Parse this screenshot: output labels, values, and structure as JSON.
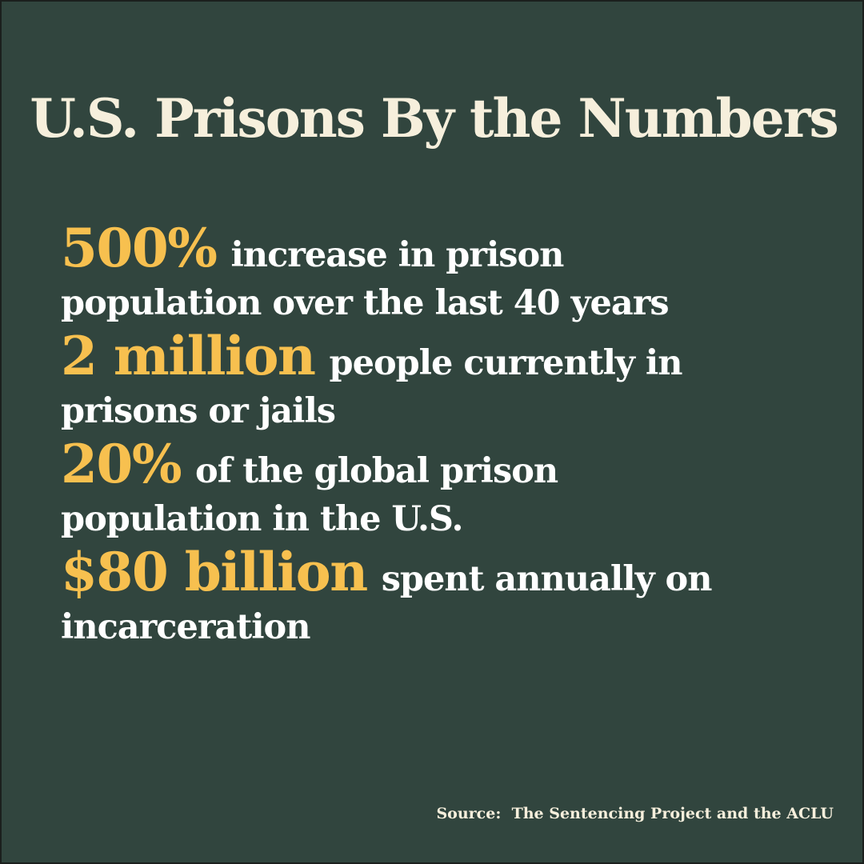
{
  "title": "U.S. Prisons By the Numbers",
  "stats": [
    {
      "figure": "500%",
      "line1": "increase in prison",
      "line2": "population over the last 40 years"
    },
    {
      "figure": "2 million",
      "line1": "people currently in",
      "line2": "prisons or jails"
    },
    {
      "figure": "20%",
      "line1": "of the global prison",
      "line2": "population in the U.S."
    },
    {
      "figure": "$80 billion",
      "line1": "spent annually on",
      "line2": "incarceration"
    }
  ],
  "source": "Source:  The Sentencing Project and the ACLU",
  "colors": {
    "background": "#31453e",
    "title": "#f6efdc",
    "figure": "#f7c04f",
    "body_text": "#ffffff"
  }
}
